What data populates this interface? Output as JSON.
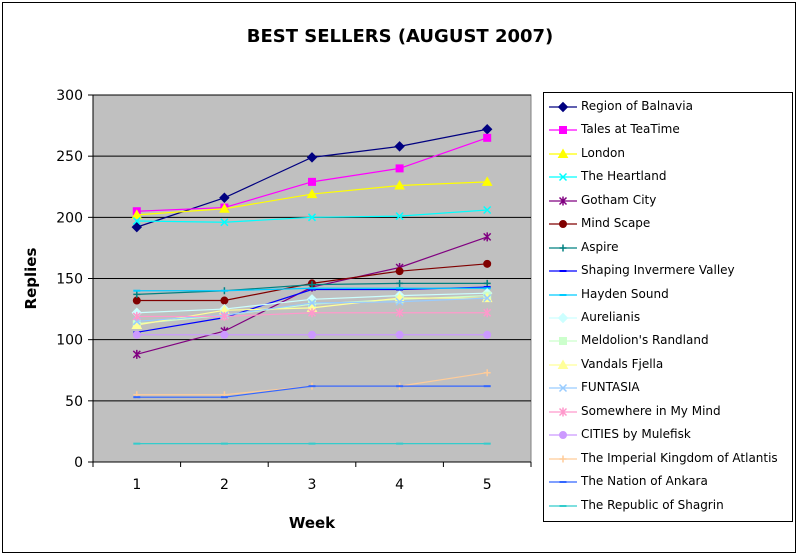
{
  "chart_data": {
    "type": "line",
    "title": "BEST SELLERS (AUGUST 2007)",
    "xlabel": "Week",
    "ylabel": "Replies",
    "x": [
      1,
      2,
      3,
      4,
      5
    ],
    "ylim": [
      0,
      300
    ],
    "yticks": [
      0,
      50,
      100,
      150,
      200,
      250,
      300
    ],
    "grid": true,
    "legend_position": "right",
    "plot_background": "#c0c0c0",
    "series": [
      {
        "name": "Region of Balnavia",
        "values": [
          192,
          216,
          249,
          258,
          272
        ],
        "color": "#000080",
        "marker": "diamond"
      },
      {
        "name": "Tales at TeaTime",
        "values": [
          205,
          208,
          229,
          240,
          265
        ],
        "color": "#ff00ff",
        "marker": "square"
      },
      {
        "name": "London",
        "values": [
          202,
          207,
          219,
          226,
          229
        ],
        "color": "#ffff00",
        "marker": "triangle"
      },
      {
        "name": "The Heartland",
        "values": [
          197,
          196,
          200,
          201,
          206
        ],
        "color": "#00ffff",
        "marker": "x"
      },
      {
        "name": "Gotham City",
        "values": [
          88,
          107,
          143,
          159,
          184
        ],
        "color": "#800080",
        "marker": "star"
      },
      {
        "name": "Mind Scape",
        "values": [
          132,
          132,
          146,
          156,
          162
        ],
        "color": "#800000",
        "marker": "circle"
      },
      {
        "name": "Aspire",
        "values": [
          137,
          140,
          145,
          146,
          146
        ],
        "color": "#008080",
        "marker": "plus"
      },
      {
        "name": "Shaping Invermere Valley",
        "values": [
          106,
          118,
          141,
          141,
          143
        ],
        "color": "#0000ff",
        "marker": "dash"
      },
      {
        "name": "Hayden Sound",
        "values": [
          140,
          140,
          142,
          142,
          142
        ],
        "color": "#00ccff",
        "marker": "dash"
      },
      {
        "name": "Aurelianis",
        "values": [
          122,
          125,
          133,
          136,
          138
        ],
        "color": "#ccffff",
        "marker": "diamond"
      },
      {
        "name": "Meldolion's Randland",
        "values": [
          113,
          120,
          129,
          133,
          136
        ],
        "color": "#ccffcc",
        "marker": "square"
      },
      {
        "name": "Vandals Fjella",
        "values": [
          112,
          124,
          126,
          134,
          134
        ],
        "color": "#ffff99",
        "marker": "triangle"
      },
      {
        "name": "FUNTASIA",
        "values": [
          115,
          120,
          130,
          131,
          134
        ],
        "color": "#99ccff",
        "marker": "x"
      },
      {
        "name": "Somewhere in My Mind",
        "values": [
          119,
          119,
          122,
          122,
          122
        ],
        "color": "#ff99cc",
        "marker": "star"
      },
      {
        "name": "CITIES by Mulefisk",
        "values": [
          104,
          104,
          104,
          104,
          104
        ],
        "color": "#cc99ff",
        "marker": "circle"
      },
      {
        "name": "The Imperial Kingdom of Atlantis",
        "values": [
          55,
          55,
          62,
          62,
          73
        ],
        "color": "#ffcc99",
        "marker": "plus"
      },
      {
        "name": "The Nation of Ankara",
        "values": [
          53,
          53,
          62,
          62,
          62
        ],
        "color": "#3366ff",
        "marker": "dash"
      },
      {
        "name": "The Republic of Shagrin",
        "values": [
          15,
          15,
          15,
          15,
          15
        ],
        "color": "#33cccc",
        "marker": "dash"
      }
    ]
  }
}
